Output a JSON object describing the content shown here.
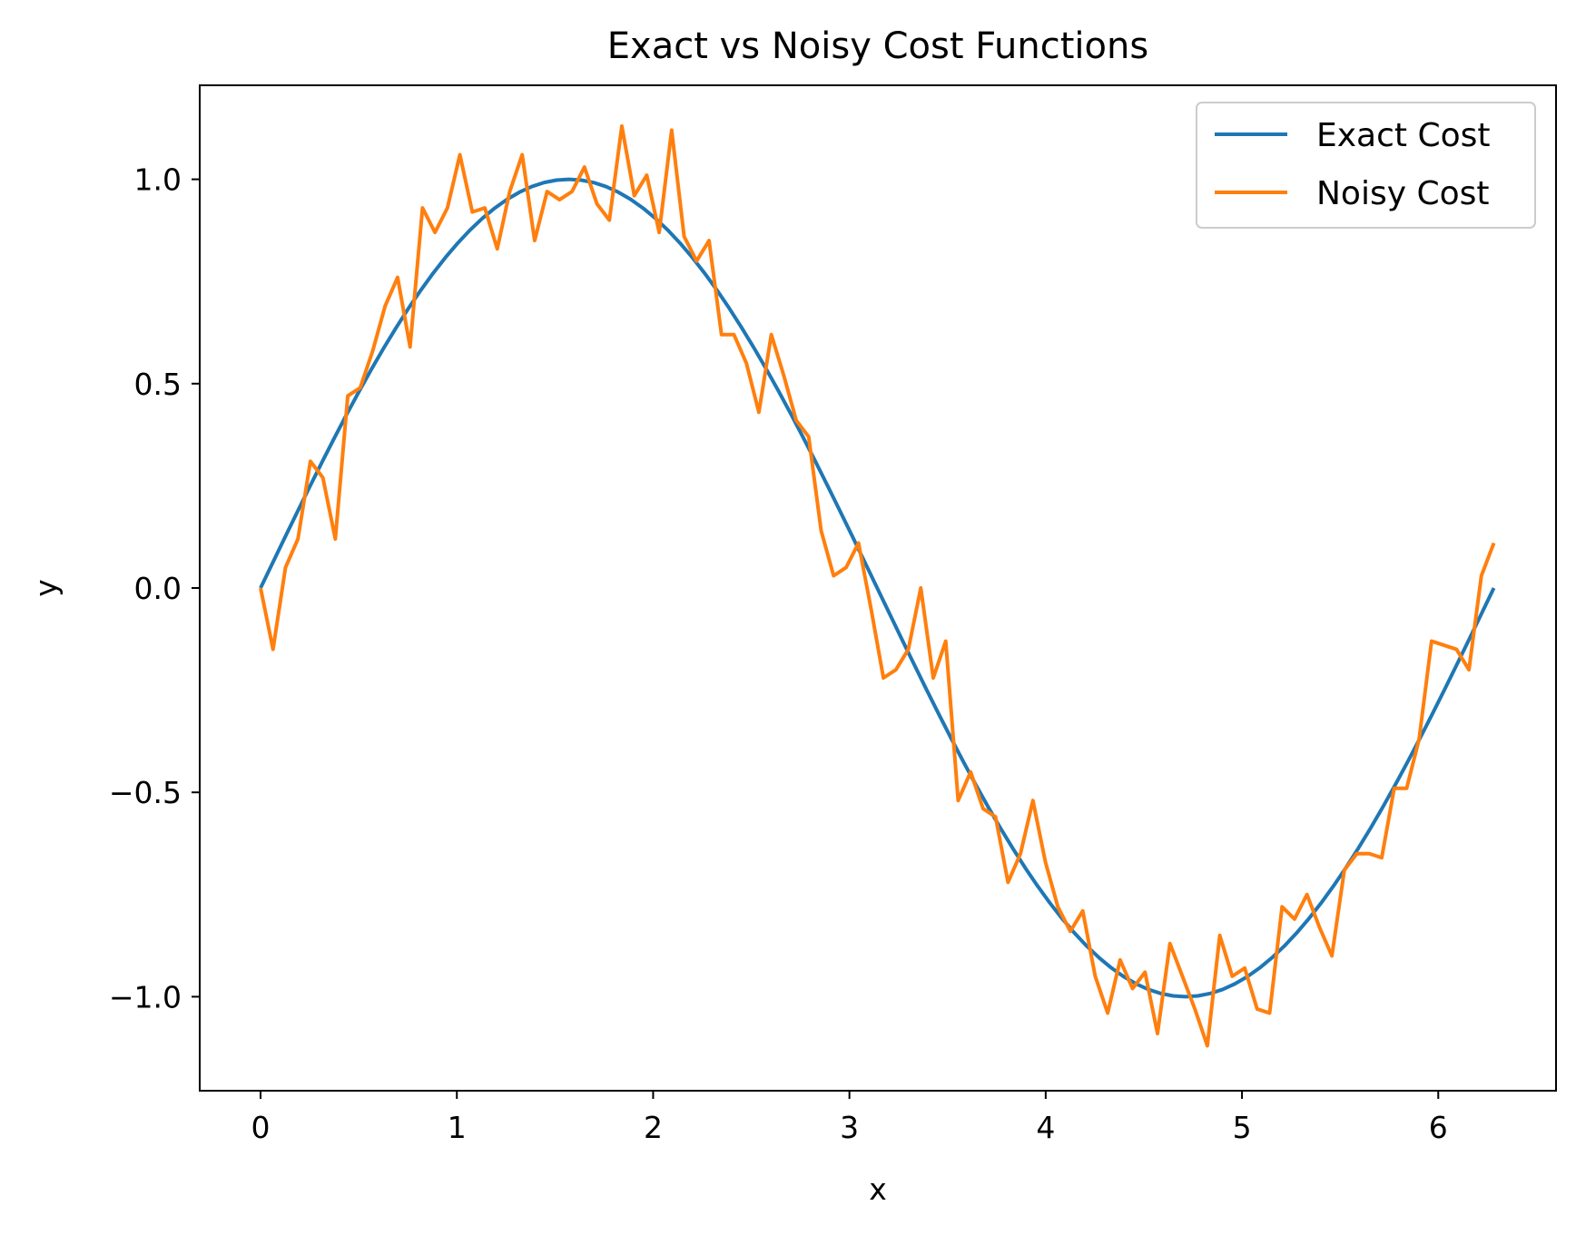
{
  "chart_data": {
    "type": "line",
    "title": "Exact vs Noisy Cost Functions",
    "xlabel": "x",
    "ylabel": "y",
    "xlim": [
      -0.31,
      6.6
    ],
    "ylim": [
      -1.23,
      1.23
    ],
    "xticks": [
      0,
      1,
      2,
      3,
      4,
      5,
      6
    ],
    "xtick_labels": [
      "0",
      "1",
      "2",
      "3",
      "4",
      "5",
      "6"
    ],
    "yticks": [
      -1.0,
      -0.5,
      0.0,
      0.5,
      1.0
    ],
    "ytick_labels": [
      "−1.0",
      "−0.5",
      "0.0",
      "0.5",
      "1.0"
    ],
    "grid": false,
    "legend_position": "top-right",
    "series": [
      {
        "name": "Exact Cost",
        "color": "#1f77b4",
        "function": "sin",
        "x_range": [
          0,
          6.2832
        ],
        "n_points": 101
      },
      {
        "name": "Noisy Cost",
        "color": "#ff7f0e",
        "x": [
          0,
          0.0635,
          0.1269,
          0.1904,
          0.2539,
          0.3173,
          0.3808,
          0.4443,
          0.5077,
          0.5712,
          0.6347,
          0.6981,
          0.7616,
          0.8251,
          0.8885,
          0.952,
          1.0155,
          1.0789,
          1.1424,
          1.2059,
          1.2693,
          1.3328,
          1.3963,
          1.4597,
          1.5232,
          1.5867,
          1.6501,
          1.7136,
          1.7771,
          1.8405,
          1.904,
          1.9675,
          2.0309,
          2.0944,
          2.1579,
          2.2213,
          2.2848,
          2.3483,
          2.4117,
          2.4752,
          2.5387,
          2.6021,
          2.6656,
          2.7291,
          2.7925,
          2.856,
          2.9195,
          2.9829,
          3.0464,
          3.1099,
          3.1733,
          3.2368,
          3.3003,
          3.3637,
          3.4272,
          3.4907,
          3.5541,
          3.6176,
          3.6811,
          3.7445,
          3.808,
          3.8715,
          3.9349,
          3.9984,
          4.0619,
          4.1253,
          4.1888,
          4.2523,
          4.3157,
          4.3792,
          4.4427,
          4.5061,
          4.5696,
          4.6331,
          4.6965,
          4.76,
          4.8235,
          4.8869,
          4.9504,
          5.0139,
          5.0773,
          5.1408,
          5.2043,
          5.2677,
          5.3312,
          5.3947,
          5.4581,
          5.5216,
          5.5851,
          5.6485,
          5.712,
          5.7755,
          5.8389,
          5.9024,
          5.9659,
          6.0293,
          6.0928,
          6.1563,
          6.2197,
          6.2832
        ],
        "y": [
          0.0,
          -0.15,
          0.05,
          0.12,
          0.31,
          0.27,
          0.12,
          0.47,
          0.49,
          0.58,
          0.69,
          0.76,
          0.59,
          0.93,
          0.87,
          0.93,
          1.06,
          0.92,
          0.93,
          0.83,
          0.97,
          1.06,
          0.85,
          0.97,
          0.95,
          0.97,
          1.03,
          0.94,
          0.9,
          1.13,
          0.96,
          1.01,
          0.87,
          1.12,
          0.86,
          0.8,
          0.85,
          0.62,
          0.62,
          0.55,
          0.43,
          0.62,
          0.52,
          0.41,
          0.37,
          0.14,
          0.03,
          0.05,
          0.11,
          -0.05,
          -0.22,
          -0.2,
          -0.15,
          0.0,
          -0.22,
          -0.13,
          -0.52,
          -0.45,
          -0.54,
          -0.56,
          -0.72,
          -0.65,
          -0.52,
          -0.67,
          -0.78,
          -0.84,
          -0.79,
          -0.95,
          -1.04,
          -0.91,
          -0.98,
          -0.94,
          -1.09,
          -0.87,
          -0.95,
          -1.03,
          -1.12,
          -0.85,
          -0.95,
          -0.93,
          -1.03,
          -1.04,
          -0.78,
          -0.81,
          -0.75,
          -0.83,
          -0.9,
          -0.69,
          -0.65,
          -0.65,
          -0.66,
          -0.49,
          -0.49,
          -0.37,
          -0.13,
          -0.14,
          -0.15,
          -0.2,
          0.03,
          0.11
        ]
      }
    ]
  }
}
